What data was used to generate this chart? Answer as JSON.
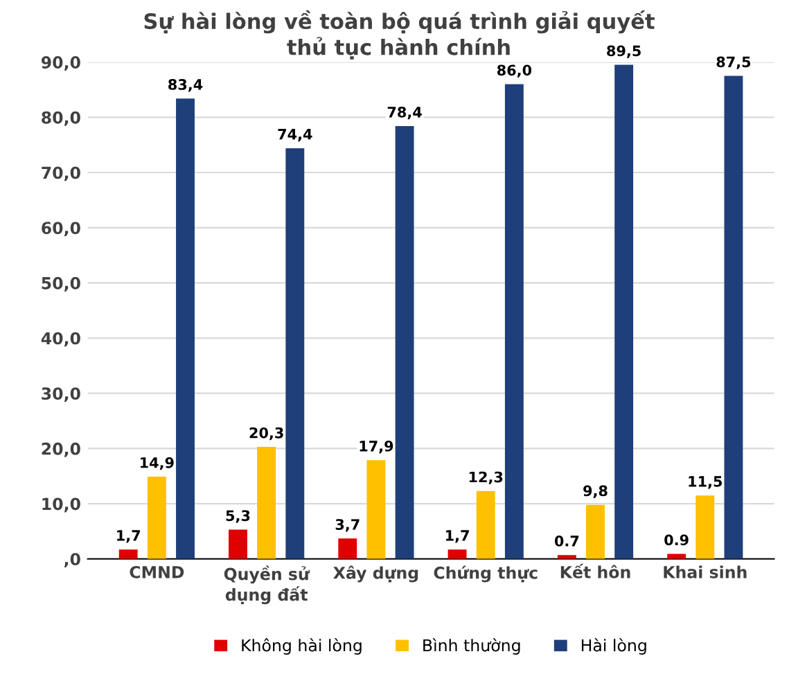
{
  "chart_data": {
    "type": "bar",
    "title": "Sự hài lòng về toàn bộ quá trình giải quyết\nthủ tục hành chính",
    "categories": [
      "CMND",
      "Quyền sử\ndụng đất",
      "Xây dựng",
      "Chứng thực",
      "Kết hôn",
      "Khai sinh"
    ],
    "series": [
      {
        "name": "Không hài lòng",
        "color": "#e00000",
        "values": [
          1.7,
          5.3,
          3.7,
          1.7,
          0.7,
          0.9
        ],
        "value_labels": [
          "1,7",
          "5,3",
          "3,7",
          "1,7",
          "0.7",
          "0.9"
        ]
      },
      {
        "name": "Bình thường",
        "color": "#ffc000",
        "values": [
          14.9,
          20.3,
          17.9,
          12.3,
          9.8,
          11.5
        ],
        "value_labels": [
          "14,9",
          "20,3",
          "17,9",
          "12,3",
          "9,8",
          "11,5"
        ]
      },
      {
        "name": "Hài lòng",
        "color": "#1f3f7a",
        "values": [
          83.4,
          74.4,
          78.4,
          86.0,
          89.5,
          87.5
        ],
        "value_labels": [
          "83,4",
          "74,4",
          "78,4",
          "86,0",
          "89,5",
          "87,5"
        ]
      }
    ],
    "ylim": [
      0,
      90
    ],
    "yticks": [
      {
        "value": 0,
        "label": ",0"
      },
      {
        "value": 10,
        "label": "10,0"
      },
      {
        "value": 20,
        "label": "20,0"
      },
      {
        "value": 30,
        "label": "30,0"
      },
      {
        "value": 40,
        "label": "40,0"
      },
      {
        "value": 50,
        "label": "50,0"
      },
      {
        "value": 60,
        "label": "60,0"
      },
      {
        "value": 70,
        "label": "70,0"
      },
      {
        "value": 80,
        "label": "80,0"
      },
      {
        "value": 90,
        "label": "90,0"
      }
    ],
    "grid": "y",
    "legend": "bottom"
  }
}
